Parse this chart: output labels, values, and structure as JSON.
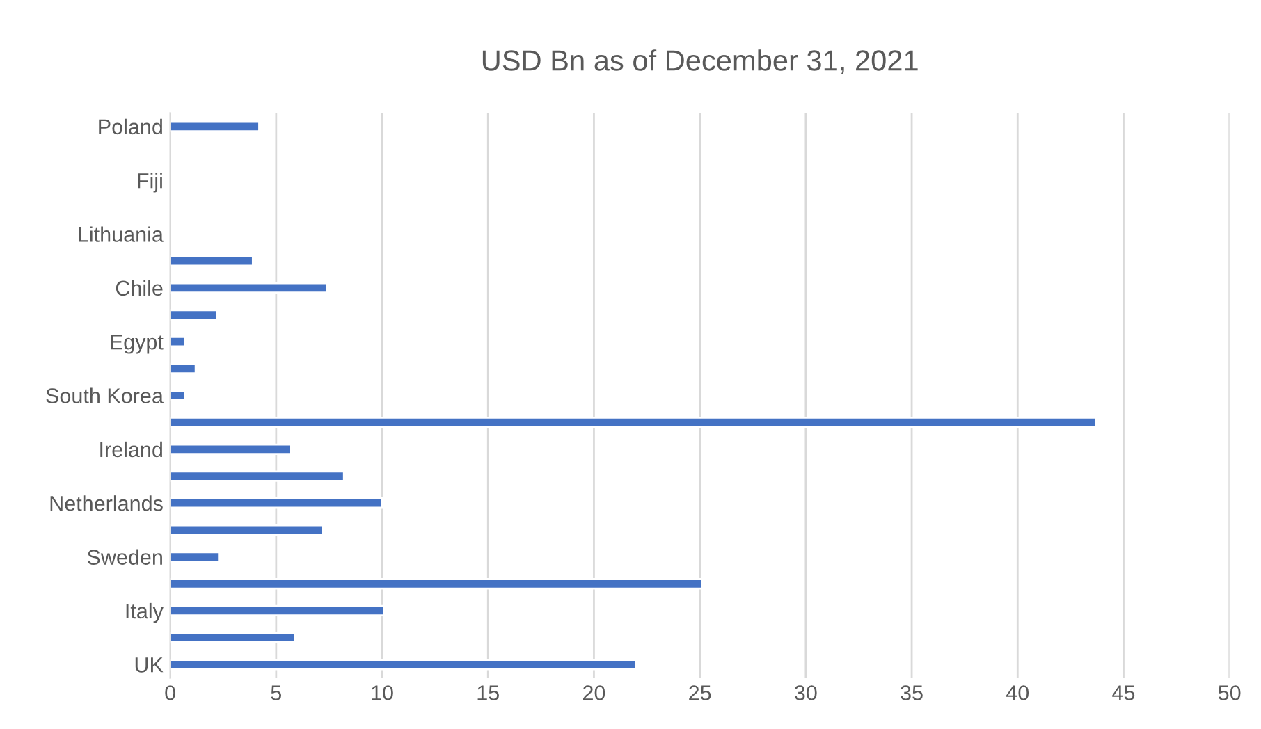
{
  "chart_data": {
    "type": "bar",
    "orientation": "horizontal",
    "title": "USD Bn as of December 31, 2021",
    "categories": [
      "Poland",
      null,
      "Fiji",
      null,
      "Lithuania",
      null,
      "Chile",
      null,
      "Egypt",
      null,
      "South Korea",
      null,
      "Ireland",
      null,
      "Netherlands",
      null,
      "Sweden",
      null,
      "Italy",
      null,
      "UK"
    ],
    "values": [
      4.2,
      null,
      null,
      null,
      null,
      3.9,
      7.4,
      2.2,
      0.7,
      1.2,
      0.7,
      43.7,
      5.7,
      8.2,
      10.0,
      7.2,
      2.3,
      25.1,
      10.1,
      5.9,
      22.0
    ],
    "color": "#4472c4",
    "xlim": [
      0,
      50
    ],
    "xticks": [
      0,
      5,
      10,
      15,
      20,
      25,
      30,
      35,
      40,
      45,
      50
    ],
    "grid": "x"
  }
}
